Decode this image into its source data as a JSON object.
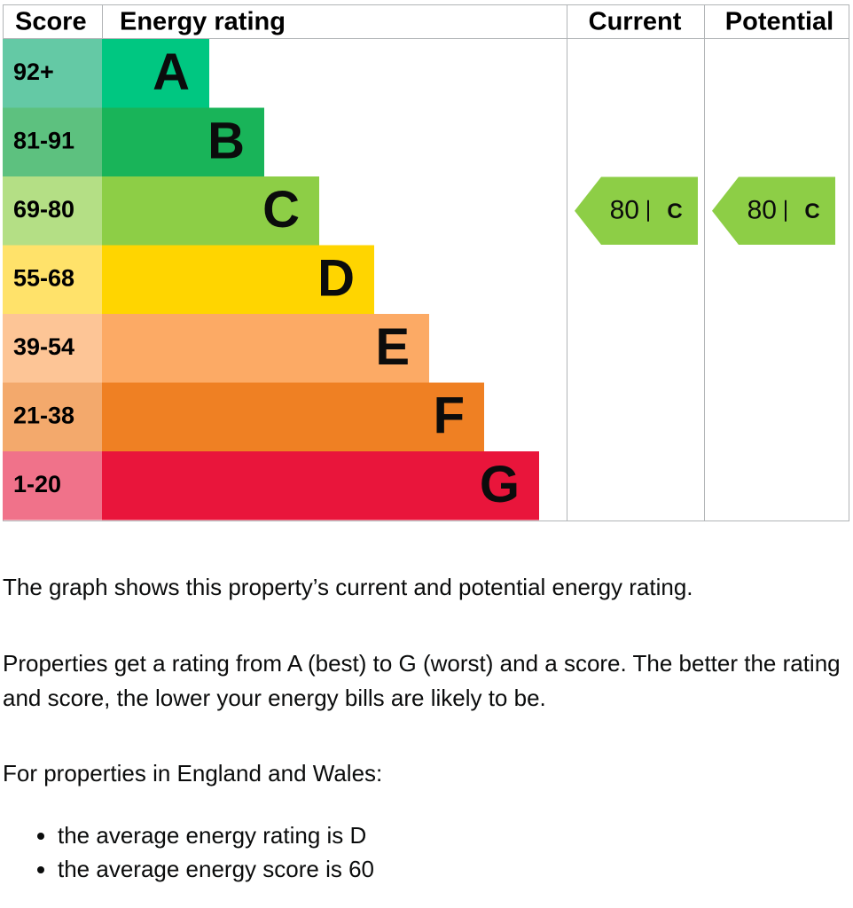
{
  "graph": {
    "headers": [
      "Score",
      "Energy rating",
      "Current",
      "Potential"
    ],
    "bands": [
      {
        "score": "92+",
        "rating": "A",
        "color": "#00c781",
        "score_color": "#64c9a5"
      },
      {
        "score": "81-91",
        "rating": "B",
        "color": "#19b459",
        "score_color": "#5dc17f"
      },
      {
        "score": "69-80",
        "rating": "C",
        "color": "#8dce46",
        "score_color": "#b4df85"
      },
      {
        "score": "55-68",
        "rating": "D",
        "color": "#ffd500",
        "score_color": "#ffe26a"
      },
      {
        "score": "39-54",
        "rating": "E",
        "color": "#fcaa65",
        "score_color": "#fdc596"
      },
      {
        "score": "21-38",
        "rating": "F",
        "color": "#ef8023",
        "score_color": "#f3a96c"
      },
      {
        "score": "1-20",
        "rating": "G",
        "color": "#e9153b",
        "score_color": "#f0728a"
      }
    ],
    "current": {
      "score": 80,
      "rating": "C"
    },
    "potential": {
      "score": 80,
      "rating": "C"
    }
  },
  "text": {
    "paragraphs": [
      "The graph shows this property’s current and potential energy rating.",
      "Properties get a rating from A (best) to G (worst) and a score. The better the rating and score, the lower your energy bills are likely to be.",
      "For properties in England and Wales:"
    ],
    "list": [
      "the average energy rating is D",
      "the average energy score is 60"
    ]
  }
}
